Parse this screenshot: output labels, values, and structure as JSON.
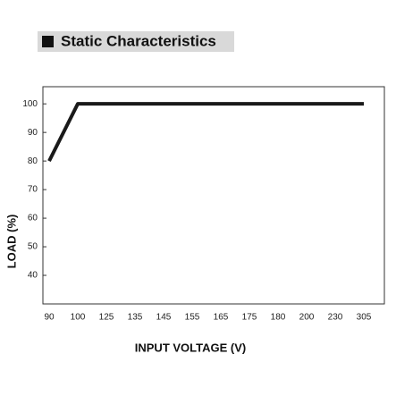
{
  "chart_data": {
    "type": "line",
    "title": "Static Characteristics",
    "x_label": "INPUT VOLTAGE (V)",
    "y_label": "LOAD (%)",
    "categories": [
      "90",
      "100",
      "125",
      "135",
      "145",
      "155",
      "165",
      "175",
      "180",
      "200",
      "230",
      "305"
    ],
    "series": [
      {
        "name": "Load",
        "color": "#1a1a1a",
        "values": [
          80,
          100,
          100,
          100,
          100,
          100,
          100,
          100,
          100,
          100,
          100,
          100
        ]
      }
    ],
    "ylim": [
      30,
      106
    ],
    "yticks": [
      40,
      50,
      60,
      70,
      80,
      90,
      100
    ],
    "grid": false
  }
}
